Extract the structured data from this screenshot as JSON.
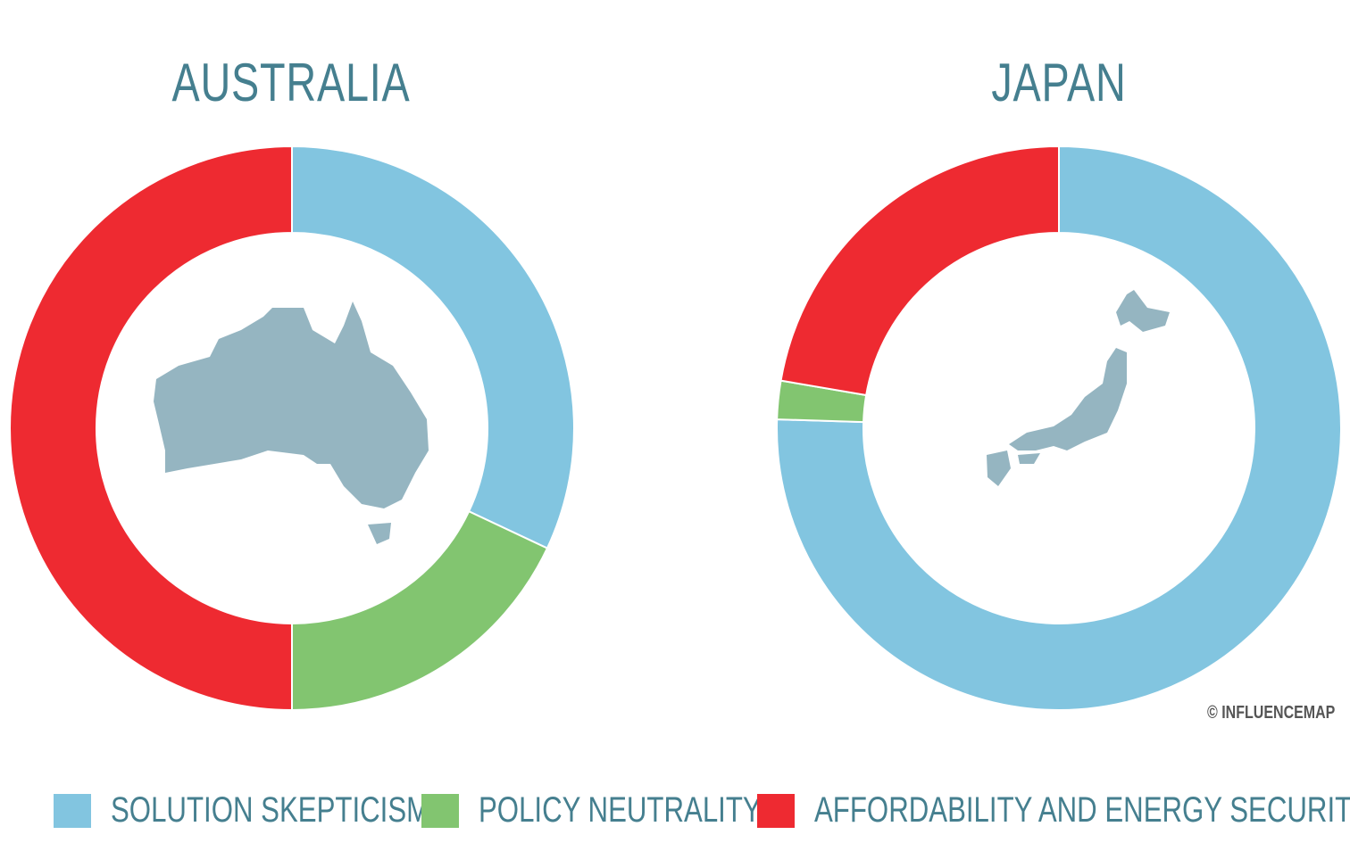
{
  "chart_data": [
    {
      "type": "pie",
      "title": "AUSTRALIA",
      "categories": [
        "SOLUTION SKEPTICISM",
        "POLICY NEUTRALITY",
        "AFFORDABILITY AND ENERGY SECURITY"
      ],
      "values": [
        32,
        18,
        50
      ],
      "unit": "%"
    },
    {
      "type": "pie",
      "title": "JAPAN",
      "categories": [
        "SOLUTION SKEPTICISM",
        "POLICY NEUTRALITY",
        "AFFORDABILITY AND ENERGY SECURITY"
      ],
      "values": [
        75.5,
        2.2,
        22.3
      ],
      "unit": "%"
    }
  ],
  "legend": [
    {
      "label": "SOLUTION SKEPTICISM",
      "color": "#82c5e0"
    },
    {
      "label": "POLICY NEUTRALITY",
      "color": "#82c570"
    },
    {
      "label": "AFFORDABILITY AND ENERGY SECURITY",
      "color": "#ee2a31"
    }
  ],
  "map_color": "#95b5c1",
  "credit": "© INFLUENCEMAP"
}
